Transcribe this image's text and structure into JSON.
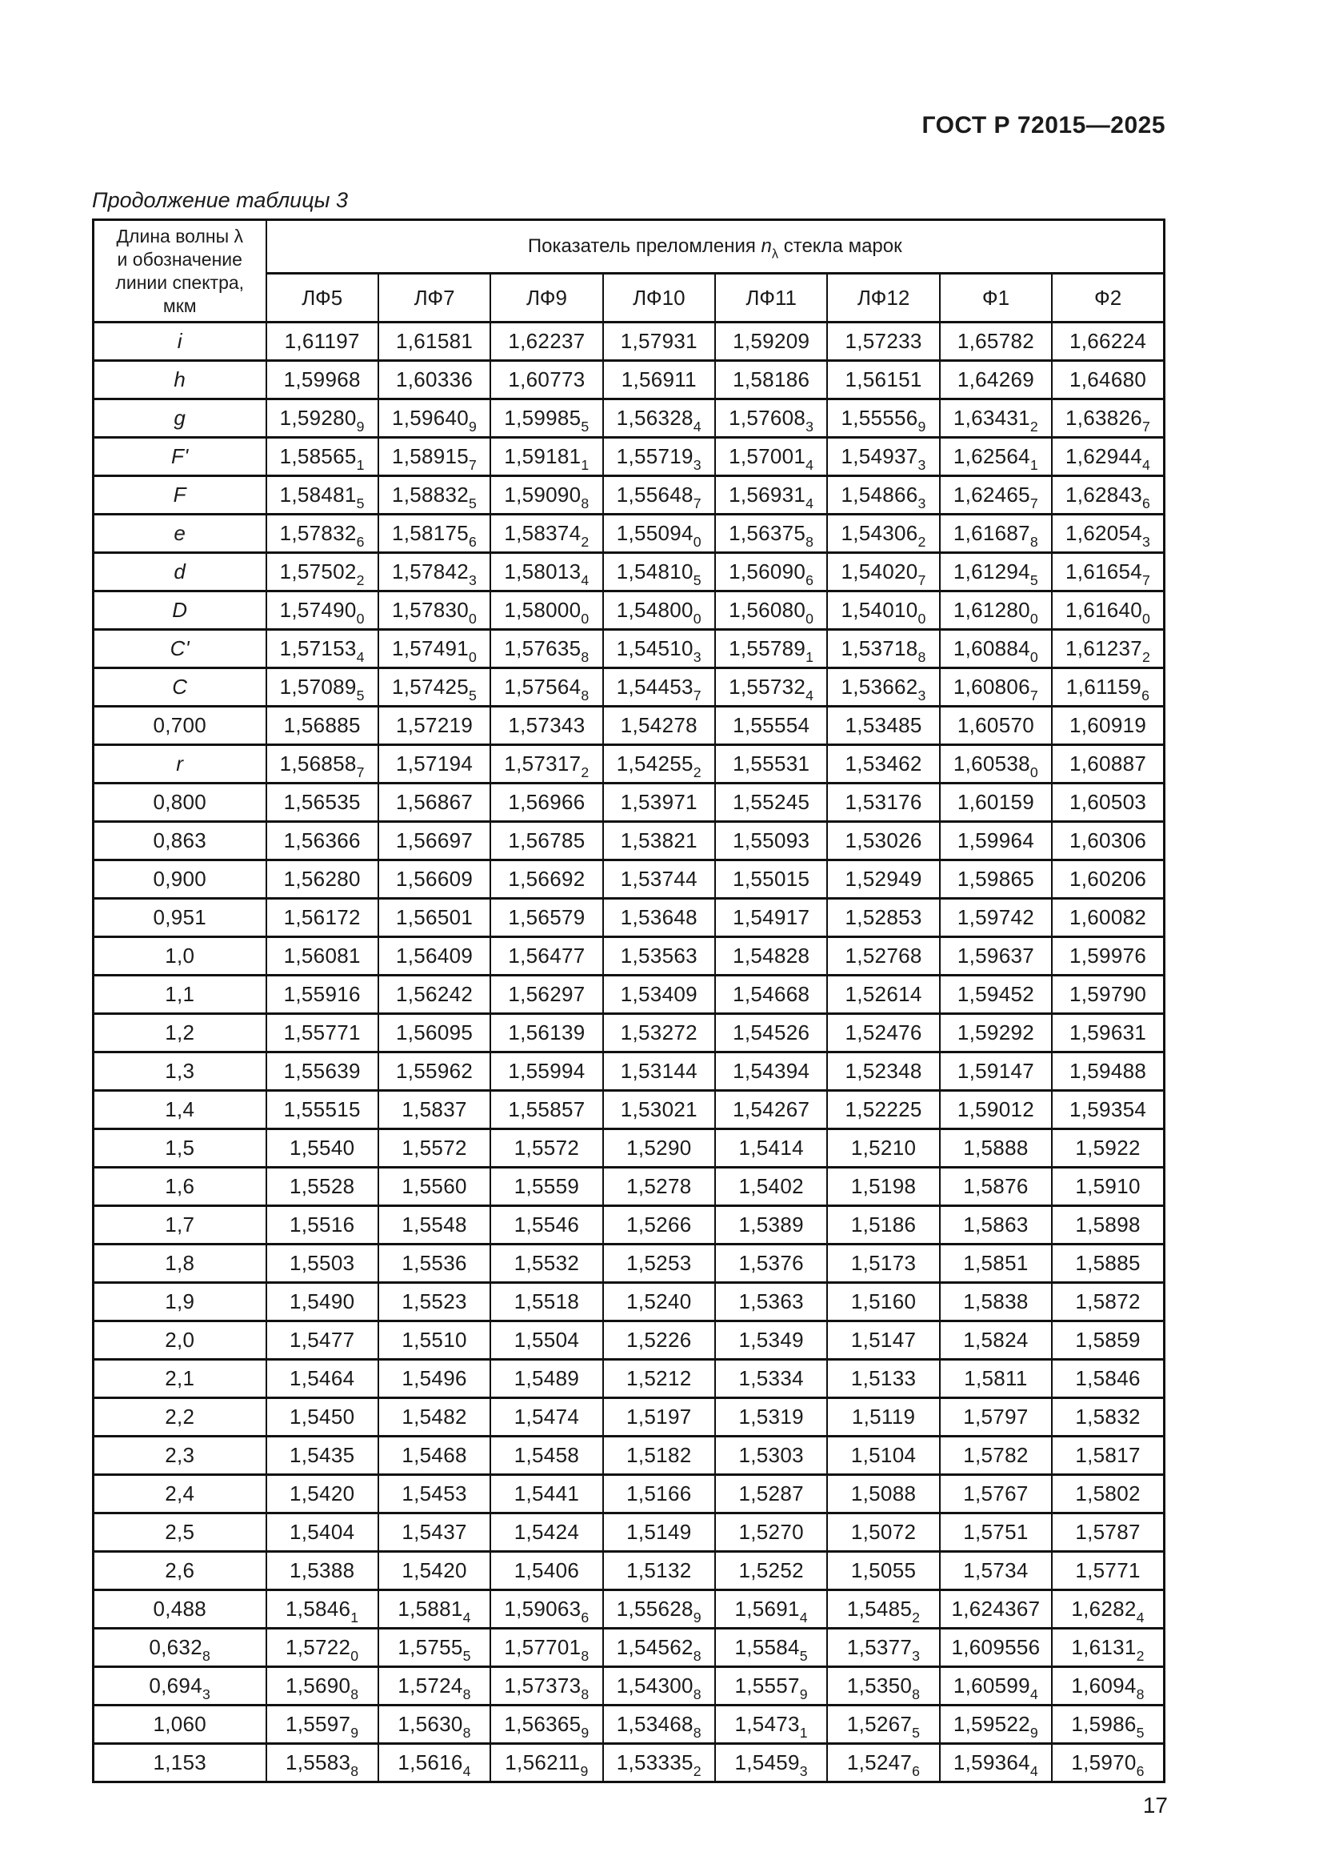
{
  "page": {
    "doc_code": "ГОСТ Р 72015—2025",
    "caption": "Продолжение таблицы 3",
    "page_number": "17"
  },
  "table": {
    "col1_header": "Длина волны λ\nи обозначение\nлинии спектра,\nмкм",
    "span_header": {
      "prefix": "Показатель преломления",
      "symbol": "n",
      "symbol_sub": "λ",
      "suffix": "стекла марок"
    },
    "columns": [
      "ЛФ5",
      "ЛФ7",
      "ЛФ9",
      "ЛФ10",
      "ЛФ11",
      "ЛФ12",
      "Ф1",
      "Ф2"
    ],
    "rows": [
      {
        "label": "i",
        "values": [
          "1,61197",
          "1,61581",
          "1,62237",
          "1,57931",
          "1,59209",
          "1,57233",
          "1,65782",
          "1,66224"
        ]
      },
      {
        "label": "h",
        "values": [
          "1,59968",
          "1,60336",
          "1,60773",
          "1,56911",
          "1,58186",
          "1,56151",
          "1,64269",
          "1,64680"
        ]
      },
      {
        "label": "g",
        "values": [
          "1,59280_9",
          "1,59640_9",
          "1,59985_5",
          "1,56328_4",
          "1,57608_3",
          "1,55556_9",
          "1,63431_2",
          "1,63826_7"
        ]
      },
      {
        "label": "F'",
        "values": [
          "1,58565_1",
          "1,58915_7",
          "1,59181_1",
          "1,55719_3",
          "1,57001_4",
          "1,54937_3",
          "1,62564_1",
          "1,62944_4"
        ]
      },
      {
        "label": "F",
        "values": [
          "1,58481_5",
          "1,58832_5",
          "1,59090_8",
          "1,55648_7",
          "1,56931_4",
          "1,54866_3",
          "1,62465_7",
          "1,62843_6"
        ]
      },
      {
        "label": "e",
        "values": [
          "1,57832_6",
          "1,58175_6",
          "1,58374_2",
          "1,55094_0",
          "1,56375_8",
          "1,54306_2",
          "1,61687_8",
          "1,62054_3"
        ]
      },
      {
        "label": "d",
        "values": [
          "1,57502_2",
          "1,57842_3",
          "1,58013_4",
          "1,54810_5",
          "1,56090_6",
          "1,54020_7",
          "1,61294_5",
          "1,61654_7"
        ]
      },
      {
        "label": "D",
        "values": [
          "1,57490_0",
          "1,57830_0",
          "1,58000_0",
          "1,54800_0",
          "1,56080_0",
          "1,54010_0",
          "1,61280_0",
          "1,61640_0"
        ]
      },
      {
        "label": "C'",
        "values": [
          "1,57153_4",
          "1,57491_0",
          "1,57635_8",
          "1,54510_3",
          "1,55789_1",
          "1,53718_8",
          "1,60884_0",
          "1,61237_2"
        ]
      },
      {
        "label": "C",
        "values": [
          "1,57089_5",
          "1,57425_5",
          "1,57564_8",
          "1,54453_7",
          "1,55732_4",
          "1,53662_3",
          "1,60806_7",
          "1,61159_6"
        ]
      },
      {
        "label": "0,700",
        "values": [
          "1,56885",
          "1,57219",
          "1,57343",
          "1,54278",
          "1,55554",
          "1,53485",
          "1,60570",
          "1,60919"
        ]
      },
      {
        "label": "r",
        "values": [
          "1,56858_7",
          "1,57194",
          "1,57317_2",
          "1,54255_2",
          "1,55531",
          "1,53462",
          "1,60538_0",
          "1,60887"
        ]
      },
      {
        "label": "0,800",
        "values": [
          "1,56535",
          "1,56867",
          "1,56966",
          "1,53971",
          "1,55245",
          "1,53176",
          "1,60159",
          "1,60503"
        ]
      },
      {
        "label": "0,863",
        "values": [
          "1,56366",
          "1,56697",
          "1,56785",
          "1,53821",
          "1,55093",
          "1,53026",
          "1,59964",
          "1,60306"
        ]
      },
      {
        "label": "0,900",
        "values": [
          "1,56280",
          "1,56609",
          "1,56692",
          "1,53744",
          "1,55015",
          "1,52949",
          "1,59865",
          "1,60206"
        ]
      },
      {
        "label": "0,951",
        "values": [
          "1,56172",
          "1,56501",
          "1,56579",
          "1,53648",
          "1,54917",
          "1,52853",
          "1,59742",
          "1,60082"
        ]
      },
      {
        "label": "1,0",
        "values": [
          "1,56081",
          "1,56409",
          "1,56477",
          "1,53563",
          "1,54828",
          "1,52768",
          "1,59637",
          "1,59976"
        ]
      },
      {
        "label": "1,1",
        "values": [
          "1,55916",
          "1,56242",
          "1,56297",
          "1,53409",
          "1,54668",
          "1,52614",
          "1,59452",
          "1,59790"
        ]
      },
      {
        "label": "1,2",
        "values": [
          "1,55771",
          "1,56095",
          "1,56139",
          "1,53272",
          "1,54526",
          "1,52476",
          "1,59292",
          "1,59631"
        ]
      },
      {
        "label": "1,3",
        "values": [
          "1,55639",
          "1,55962",
          "1,55994",
          "1,53144",
          "1,54394",
          "1,52348",
          "1,59147",
          "1,59488"
        ]
      },
      {
        "label": "1,4",
        "values": [
          "1,55515",
          "1,5837",
          "1,55857",
          "1,53021",
          "1,54267",
          "1,52225",
          "1,59012",
          "1,59354"
        ]
      },
      {
        "label": "1,5",
        "values": [
          "1,5540",
          "1,5572",
          "1,5572",
          "1,5290",
          "1,5414",
          "1,5210",
          "1,5888",
          "1,5922"
        ]
      },
      {
        "label": "1,6",
        "values": [
          "1,5528",
          "1,5560",
          "1,5559",
          "1,5278",
          "1,5402",
          "1,5198",
          "1,5876",
          "1,5910"
        ]
      },
      {
        "label": "1,7",
        "values": [
          "1,5516",
          "1,5548",
          "1,5546",
          "1,5266",
          "1,5389",
          "1,5186",
          "1,5863",
          "1,5898"
        ]
      },
      {
        "label": "1,8",
        "values": [
          "1,5503",
          "1,5536",
          "1,5532",
          "1,5253",
          "1,5376",
          "1,5173",
          "1,5851",
          "1,5885"
        ]
      },
      {
        "label": "1,9",
        "values": [
          "1,5490",
          "1,5523",
          "1,5518",
          "1,5240",
          "1,5363",
          "1,5160",
          "1,5838",
          "1,5872"
        ]
      },
      {
        "label": "2,0",
        "values": [
          "1,5477",
          "1,5510",
          "1,5504",
          "1,5226",
          "1,5349",
          "1,5147",
          "1,5824",
          "1,5859"
        ]
      },
      {
        "label": "2,1",
        "values": [
          "1,5464",
          "1,5496",
          "1,5489",
          "1,5212",
          "1,5334",
          "1,5133",
          "1,5811",
          "1,5846"
        ]
      },
      {
        "label": "2,2",
        "values": [
          "1,5450",
          "1,5482",
          "1,5474",
          "1,5197",
          "1,5319",
          "1,5119",
          "1,5797",
          "1,5832"
        ]
      },
      {
        "label": "2,3",
        "values": [
          "1,5435",
          "1,5468",
          "1,5458",
          "1,5182",
          "1,5303",
          "1,5104",
          "1,5782",
          "1,5817"
        ]
      },
      {
        "label": "2,4",
        "values": [
          "1,5420",
          "1,5453",
          "1,5441",
          "1,5166",
          "1,5287",
          "1,5088",
          "1,5767",
          "1,5802"
        ]
      },
      {
        "label": "2,5",
        "values": [
          "1,5404",
          "1,5437",
          "1,5424",
          "1,5149",
          "1,5270",
          "1,5072",
          "1,5751",
          "1,5787"
        ]
      },
      {
        "label": "2,6",
        "values": [
          "1,5388",
          "1,5420",
          "1,5406",
          "1,5132",
          "1,5252",
          "1,5055",
          "1,5734",
          "1,5771"
        ]
      },
      {
        "label": "0,488",
        "values": [
          "1,5846_1",
          "1,5881_4",
          "1,59063_6",
          "1,55628_9",
          "1,5691_4",
          "1,5485_2",
          "1,624367",
          "1,6282_4"
        ]
      },
      {
        "label": "0,632_8",
        "values": [
          "1,5722_0",
          "1,5755_5",
          "1,57701_8",
          "1,54562_8",
          "1,5584_5",
          "1,5377_3",
          "1,609556",
          "1,6131_2"
        ]
      },
      {
        "label": "0,694_3",
        "values": [
          "1,5690_8",
          "1,5724_8",
          "1,57373_8",
          "1,54300_8",
          "1,5557_9",
          "1,5350_8",
          "1,60599_4",
          "1,6094_8"
        ]
      },
      {
        "label": "1,060",
        "values": [
          "1,5597_9",
          "1,5630_8",
          "1,56365_9",
          "1,53468_8",
          "1,5473_1",
          "1,5267_5",
          "1,59522_9",
          "1,5986_5"
        ]
      },
      {
        "label": "1,153",
        "values": [
          "1,5583_8",
          "1,5616_4",
          "1,56211_9",
          "1,53335_2",
          "1,5459_3",
          "1,5247_6",
          "1,59364_4",
          "1,5970_6"
        ]
      }
    ]
  }
}
